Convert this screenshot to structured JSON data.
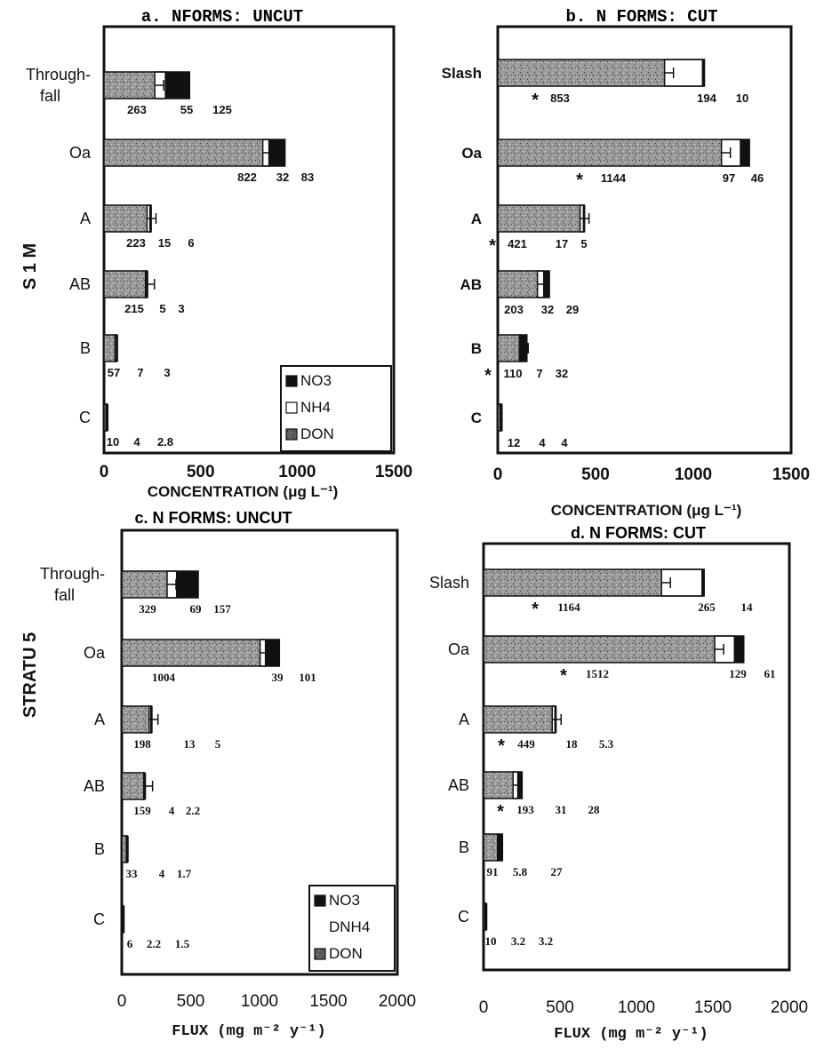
{
  "figure": {
    "side_label_top": "S 1 M",
    "side_label_bottom": "STRATU 5"
  },
  "chart_data": [
    {
      "id": "a",
      "type": "bar",
      "stacked": true,
      "orientation": "horizontal",
      "title": "a. NFORMS: UNCUT",
      "xlabel": "CONCENTRATION (μg L⁻¹)",
      "xlim": [
        0,
        1500
      ],
      "xticks": [
        "0",
        "500",
        "1000",
        "1500"
      ],
      "categories": [
        "Through-fall",
        "Oa",
        "A",
        "AB",
        "B",
        "C"
      ],
      "series": [
        {
          "name": "DON",
          "values": [
            263,
            822,
            223,
            215,
            57,
            10
          ]
        },
        {
          "name": "NH4",
          "values": [
            55,
            32,
            15,
            5,
            7,
            4
          ]
        },
        {
          "name": "NO3",
          "values": [
            125,
            83,
            6,
            3,
            3,
            2.8
          ]
        }
      ],
      "labels": [
        [
          "263",
          "55",
          "125"
        ],
        [
          "822",
          "32",
          "83"
        ],
        [
          "223",
          "15",
          "6"
        ],
        [
          "215",
          "5",
          "3"
        ],
        [
          "57",
          "7",
          "3"
        ],
        [
          "10",
          "4",
          "2.8"
        ]
      ],
      "significant": [
        false,
        false,
        false,
        false,
        false,
        false
      ],
      "legend": {
        "position": "bottom-right",
        "items": [
          "NO3",
          "NH4",
          "DON"
        ]
      },
      "grid": false
    },
    {
      "id": "b",
      "type": "bar",
      "stacked": true,
      "orientation": "horizontal",
      "title": "b. N FORMS: CUT",
      "xlabel": "CONCENTRATION (μg L⁻¹)",
      "xlim": [
        0,
        1500
      ],
      "xticks": [
        "0",
        "500",
        "1000",
        "1500"
      ],
      "categories": [
        "Slash",
        "Oa",
        "A",
        "AB",
        "B",
        "C"
      ],
      "series": [
        {
          "name": "DON",
          "values": [
            853,
            1144,
            421,
            203,
            110,
            12
          ]
        },
        {
          "name": "NH4",
          "values": [
            194,
            97,
            17,
            32,
            7,
            4
          ]
        },
        {
          "name": "NO3",
          "values": [
            10,
            46,
            5,
            29,
            32,
            4
          ]
        }
      ],
      "labels": [
        [
          "853",
          "194",
          "10"
        ],
        [
          "1144",
          "97",
          "46"
        ],
        [
          "421",
          "17",
          "5"
        ],
        [
          "203",
          "32",
          "29"
        ],
        [
          "110",
          "7",
          "32"
        ],
        [
          "12",
          "4",
          "4"
        ]
      ],
      "significant": [
        true,
        true,
        true,
        false,
        true,
        false
      ],
      "grid": false
    },
    {
      "id": "c",
      "type": "bar",
      "stacked": true,
      "orientation": "horizontal",
      "title": "c. N FORMS: UNCUT",
      "xlabel": "FLUX (mg m⁻² y⁻¹)",
      "xlim": [
        0,
        2000
      ],
      "xticks": [
        "0",
        "500",
        "1000",
        "1500",
        "2000"
      ],
      "categories": [
        "Through-fall",
        "Oa",
        "A",
        "AB",
        "B",
        "C"
      ],
      "series": [
        {
          "name": "DON",
          "values": [
            329,
            1004,
            198,
            159,
            33,
            6
          ]
        },
        {
          "name": "NH4",
          "values": [
            69,
            39,
            13,
            4,
            4,
            2.2
          ]
        },
        {
          "name": "NO3",
          "values": [
            157,
            101,
            5,
            2.2,
            1.7,
            1.5
          ]
        }
      ],
      "labels": [
        [
          "329",
          "69",
          "157"
        ],
        [
          "1004",
          "39",
          "101"
        ],
        [
          "198",
          "13",
          "5"
        ],
        [
          "159",
          "4",
          "2.2"
        ],
        [
          "33",
          "4",
          "1.7"
        ],
        [
          "6",
          "2.2",
          "1.5"
        ]
      ],
      "significant": [
        false,
        false,
        false,
        false,
        false,
        false
      ],
      "legend": {
        "position": "bottom-right",
        "items": [
          "NO3",
          "DNH4",
          "DON"
        ]
      },
      "grid": false
    },
    {
      "id": "d",
      "type": "bar",
      "stacked": true,
      "orientation": "horizontal",
      "title": "d. N FORMS: CUT",
      "xlabel": "FLUX (mg m⁻² y⁻¹)",
      "xlim": [
        0,
        2000
      ],
      "xticks": [
        "0",
        "500",
        "1000",
        "1500",
        "2000"
      ],
      "categories": [
        "Slash",
        "Oa",
        "A",
        "AB",
        "B",
        "C"
      ],
      "series": [
        {
          "name": "DON",
          "values": [
            1164,
            1512,
            449,
            193,
            91,
            10
          ]
        },
        {
          "name": "NH4",
          "values": [
            265,
            129,
            18,
            31,
            5.8,
            3.2
          ]
        },
        {
          "name": "NO3",
          "values": [
            14,
            61,
            5.3,
            28,
            27,
            3.2
          ]
        }
      ],
      "labels": [
        [
          "1164",
          "265",
          "14"
        ],
        [
          "1512",
          "129",
          "61"
        ],
        [
          "449",
          "18",
          "5.3"
        ],
        [
          "193",
          "31",
          "28"
        ],
        [
          "91",
          "5.8",
          "27"
        ],
        [
          "10",
          "3.2",
          "3.2"
        ]
      ],
      "significant": [
        true,
        true,
        true,
        true,
        false,
        false
      ],
      "grid": false
    }
  ],
  "colors": {
    "DON": "#8a8a8a",
    "NH4": "#ffffff",
    "NO3": "#111111",
    "frame": "#111111"
  }
}
